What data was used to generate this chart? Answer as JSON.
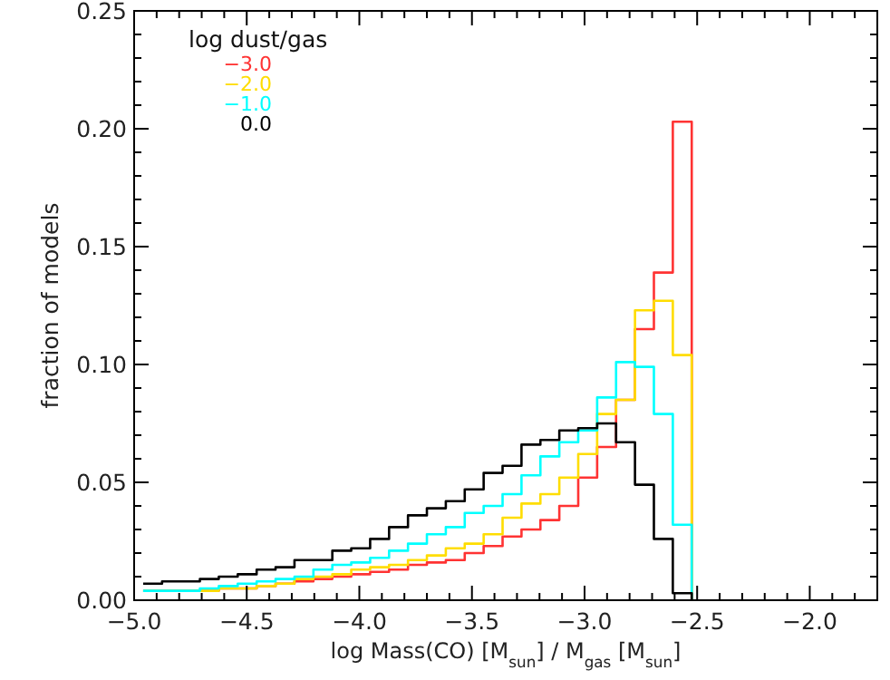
{
  "chart_data": {
    "type": "histogram",
    "xlabel": "log Mass(CO) [M$_{sun}$] / M$_{gas}$ [M$_{sun}$]",
    "ylabel": "fraction of models",
    "legend_title": "log dust/gas",
    "legend": "top left",
    "bins": [
      -4.96,
      -4.876,
      -4.792,
      -4.708,
      -4.624,
      -4.54,
      -4.456,
      -4.372,
      -4.288,
      -4.204,
      -4.12,
      -4.036,
      -3.952,
      -3.868,
      -3.784,
      -3.7,
      -3.616,
      -3.532,
      -3.448,
      -3.364,
      -3.28,
      -3.196,
      -3.112,
      -3.028,
      -2.944,
      -2.86,
      -2.776,
      -2.692,
      -2.608,
      -2.524
    ],
    "series": [
      {
        "name": "−3.0",
        "color": "#ff3333",
        "values": [
          0.004,
          0.004,
          0.004,
          0.004,
          0.005,
          0.005,
          0.006,
          0.007,
          0.008,
          0.009,
          0.01,
          0.011,
          0.012,
          0.013,
          0.015,
          0.016,
          0.017,
          0.02,
          0.023,
          0.027,
          0.03,
          0.034,
          0.04,
          0.052,
          0.065,
          0.085,
          0.115,
          0.139,
          0.203
        ]
      },
      {
        "name": "−2.0",
        "color": "#ffdd00",
        "values": [
          0.004,
          0.004,
          0.004,
          0.004,
          0.005,
          0.005,
          0.006,
          0.007,
          0.009,
          0.01,
          0.011,
          0.013,
          0.014,
          0.015,
          0.017,
          0.019,
          0.022,
          0.024,
          0.028,
          0.035,
          0.041,
          0.045,
          0.052,
          0.062,
          0.079,
          0.085,
          0.123,
          0.127,
          0.104
        ]
      },
      {
        "name": "−1.0",
        "color": "#00ffff",
        "values": [
          0.004,
          0.004,
          0.004,
          0.005,
          0.006,
          0.007,
          0.008,
          0.009,
          0.01,
          0.013,
          0.015,
          0.016,
          0.018,
          0.021,
          0.024,
          0.028,
          0.031,
          0.037,
          0.04,
          0.045,
          0.053,
          0.061,
          0.067,
          0.072,
          0.086,
          0.101,
          0.099,
          0.079,
          0.032
        ]
      },
      {
        "name": "0.0",
        "color": "#000000",
        "values": [
          0.007,
          0.008,
          0.008,
          0.009,
          0.01,
          0.011,
          0.013,
          0.014,
          0.017,
          0.017,
          0.021,
          0.022,
          0.026,
          0.031,
          0.036,
          0.039,
          0.042,
          0.047,
          0.054,
          0.057,
          0.066,
          0.068,
          0.072,
          0.073,
          0.075,
          0.067,
          0.049,
          0.026,
          0.003
        ]
      }
    ],
    "xlim": [
      -5.0,
      -1.7
    ],
    "ylim": [
      0,
      0.25
    ],
    "xticks": [
      {
        "value": -5.0,
        "label": "−5.0"
      },
      {
        "value": -4.9,
        "label": null
      },
      {
        "value": -4.8,
        "label": null
      },
      {
        "value": -4.7,
        "label": null
      },
      {
        "value": -4.6,
        "label": null
      },
      {
        "value": -4.5,
        "label": "−4.5"
      },
      {
        "value": -4.4,
        "label": null
      },
      {
        "value": -4.3,
        "label": null
      },
      {
        "value": -4.2,
        "label": null
      },
      {
        "value": -4.1,
        "label": null
      },
      {
        "value": -4.0,
        "label": "−4.0"
      },
      {
        "value": -3.9,
        "label": null
      },
      {
        "value": -3.8,
        "label": null
      },
      {
        "value": -3.7,
        "label": null
      },
      {
        "value": -3.6,
        "label": null
      },
      {
        "value": -3.5,
        "label": "−3.5"
      },
      {
        "value": -3.4,
        "label": null
      },
      {
        "value": -3.3,
        "label": null
      },
      {
        "value": -3.2,
        "label": null
      },
      {
        "value": -3.1,
        "label": null
      },
      {
        "value": -3.0,
        "label": "−3.0"
      },
      {
        "value": -2.9,
        "label": null
      },
      {
        "value": -2.8,
        "label": null
      },
      {
        "value": -2.7,
        "label": null
      },
      {
        "value": -2.6,
        "label": null
      },
      {
        "value": -2.5,
        "label": "−2.5"
      },
      {
        "value": -2.4,
        "label": null
      },
      {
        "value": -2.3,
        "label": null
      },
      {
        "value": -2.2,
        "label": null
      },
      {
        "value": -2.1,
        "label": null
      },
      {
        "value": -2.0,
        "label": "−2.0"
      },
      {
        "value": -1.9,
        "label": null
      },
      {
        "value": -1.8,
        "label": null
      }
    ],
    "yticks": [
      {
        "value": 0,
        "label": "0.00"
      },
      {
        "value": 0.01,
        "label": null
      },
      {
        "value": 0.02,
        "label": null
      },
      {
        "value": 0.03,
        "label": null
      },
      {
        "value": 0.04,
        "label": null
      },
      {
        "value": 0.05,
        "label": "0.05"
      },
      {
        "value": 0.06,
        "label": null
      },
      {
        "value": 0.07,
        "label": null
      },
      {
        "value": 0.08,
        "label": null
      },
      {
        "value": 0.09,
        "label": null
      },
      {
        "value": 0.1,
        "label": "0.10"
      },
      {
        "value": 0.11,
        "label": null
      },
      {
        "value": 0.12,
        "label": null
      },
      {
        "value": 0.13,
        "label": null
      },
      {
        "value": 0.14,
        "label": null
      },
      {
        "value": 0.15,
        "label": "0.15"
      },
      {
        "value": 0.16,
        "label": null
      },
      {
        "value": 0.17,
        "label": null
      },
      {
        "value": 0.18,
        "label": null
      },
      {
        "value": 0.19,
        "label": null
      },
      {
        "value": 0.2,
        "label": "0.20"
      },
      {
        "value": 0.21,
        "label": null
      },
      {
        "value": 0.22,
        "label": null
      },
      {
        "value": 0.23,
        "label": null
      },
      {
        "value": 0.24,
        "label": null
      },
      {
        "value": 0.25,
        "label": "0.25"
      }
    ]
  }
}
